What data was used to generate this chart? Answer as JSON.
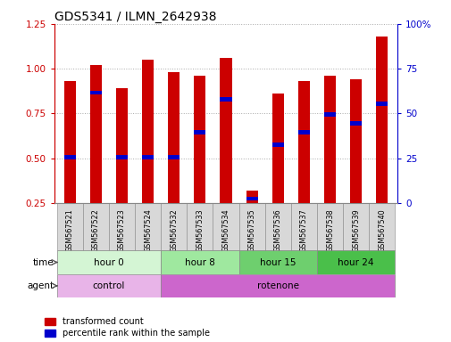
{
  "title": "GDS5341 / ILMN_2642938",
  "samples": [
    "GSM567521",
    "GSM567522",
    "GSM567523",
    "GSM567524",
    "GSM567532",
    "GSM567533",
    "GSM567534",
    "GSM567535",
    "GSM567536",
    "GSM567537",
    "GSM567538",
    "GSM567539",
    "GSM567540"
  ],
  "red_values": [
    0.93,
    1.02,
    0.89,
    1.05,
    0.98,
    0.96,
    1.06,
    0.32,
    0.86,
    0.93,
    0.96,
    0.94,
    1.18
  ],
  "blue_values": [
    0.505,
    0.865,
    0.505,
    0.505,
    0.505,
    0.645,
    0.83,
    0.275,
    0.575,
    0.645,
    0.745,
    0.695,
    0.805
  ],
  "ylim_left": [
    0.25,
    1.25
  ],
  "ylim_right": [
    0,
    100
  ],
  "yticks_left": [
    0.25,
    0.5,
    0.75,
    1.0,
    1.25
  ],
  "yticks_right": [
    0,
    25,
    50,
    75,
    100
  ],
  "time_groups": [
    {
      "label": "hour 0",
      "start": 0,
      "end": 4,
      "color": "#d4f5d4"
    },
    {
      "label": "hour 8",
      "start": 4,
      "end": 7,
      "color": "#9fe89f"
    },
    {
      "label": "hour 15",
      "start": 7,
      "end": 10,
      "color": "#6ecf6e"
    },
    {
      "label": "hour 24",
      "start": 10,
      "end": 13,
      "color": "#4abf4a"
    }
  ],
  "agent_groups": [
    {
      "label": "control",
      "start": 0,
      "end": 4,
      "color": "#e8b4e8"
    },
    {
      "label": "rotenone",
      "start": 4,
      "end": 13,
      "color": "#cc66cc"
    }
  ],
  "bar_color": "#cc0000",
  "dot_color": "#0000cc",
  "bar_width": 0.45,
  "grid_color": "#aaaaaa",
  "tick_color_left": "#cc0000",
  "tick_color_right": "#0000cc",
  "sample_box_color": "#d8d8d8",
  "legend_items": [
    "transformed count",
    "percentile rank within the sample"
  ]
}
